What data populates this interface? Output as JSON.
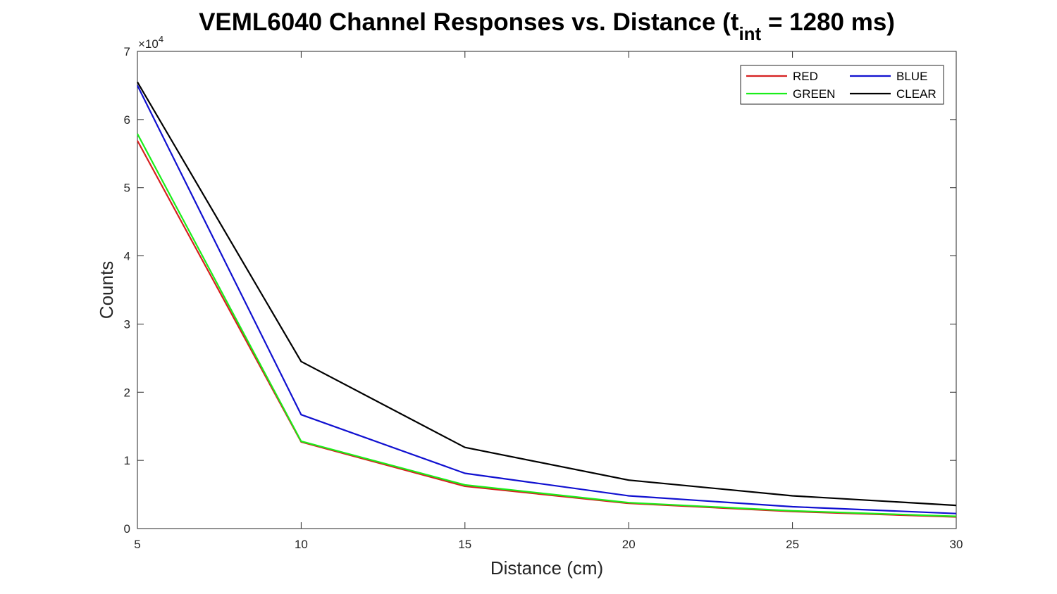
{
  "chart_data": {
    "type": "line",
    "title_main": "VEML6040 Channel Responses vs. Distance (t",
    "title_sub": "int",
    "title_end": " = 1280 ms)",
    "xlabel": "Distance (cm)",
    "ylabel": "Counts",
    "x": [
      5,
      10,
      15,
      20,
      25,
      30
    ],
    "xlim": [
      5,
      30
    ],
    "ylim": [
      0,
      70000
    ],
    "x_ticks": [
      "5",
      "10",
      "15",
      "20",
      "25",
      "30"
    ],
    "y_ticks": [
      "0",
      "1",
      "2",
      "3",
      "4",
      "5",
      "6",
      "7"
    ],
    "y_exponent_prefix": "×10",
    "y_exponent_power": "4",
    "grid": false,
    "legend_position": "top-right",
    "series": [
      {
        "name": "RED",
        "color": "#d62020",
        "values": [
          56900,
          12700,
          6200,
          3700,
          2500,
          1700
        ]
      },
      {
        "name": "GREEN",
        "color": "#1aee1a",
        "values": [
          57900,
          12800,
          6400,
          3800,
          2600,
          1800
        ]
      },
      {
        "name": "BLUE",
        "color": "#1010d0",
        "values": [
          65000,
          16700,
          8100,
          4800,
          3200,
          2200
        ]
      },
      {
        "name": "CLEAR",
        "color": "#000000",
        "values": [
          65500,
          24500,
          11900,
          7100,
          4800,
          3400
        ]
      }
    ]
  }
}
